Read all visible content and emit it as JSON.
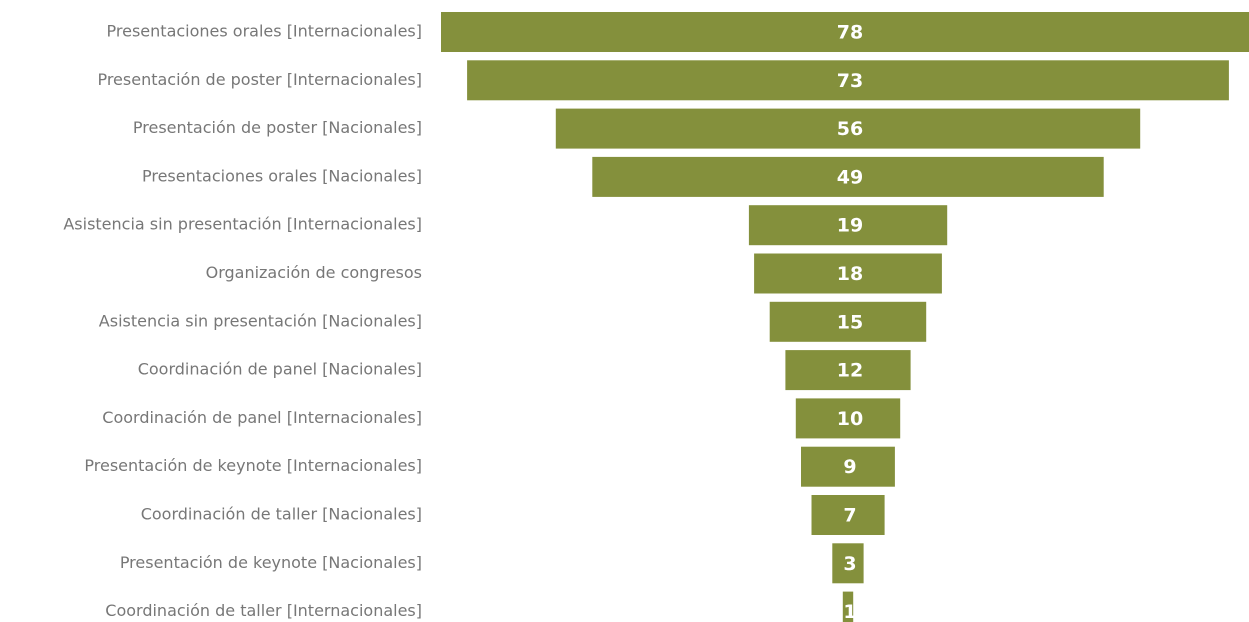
{
  "chart_data": {
    "type": "funnel",
    "bar_color": "#84903c",
    "label_color": "#777777",
    "value_label_color": "#ffffff",
    "categories": [
      "Presentaciones orales [Internacionales]",
      "Presentación de poster [Internacionales]",
      "Presentación de poster [Nacionales]",
      "Presentaciones orales [Nacionales]",
      "Asistencia sin presentación [Internacionales]",
      "Organización de congresos",
      "Asistencia sin presentación [Nacionales]",
      "Coordinación de panel [Nacionales]",
      "Coordinación de panel [Internacionales]",
      "Presentación de keynote [Internacionales]",
      "Coordinación de taller [Nacionales]",
      "Presentación de keynote [Nacionales]",
      "Coordinación de taller [Internacionales]"
    ],
    "values": [
      78,
      73,
      56,
      49,
      19,
      18,
      15,
      12,
      10,
      9,
      7,
      3,
      1
    ]
  }
}
